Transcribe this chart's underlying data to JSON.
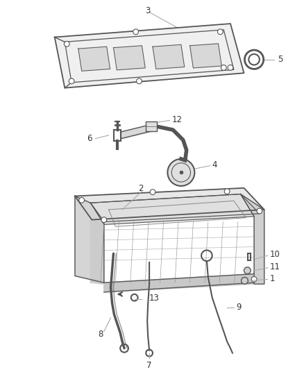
{
  "background_color": "#ffffff",
  "figure_width": 4.38,
  "figure_height": 5.33,
  "dpi": 100,
  "line_color": "#aaaaaa",
  "text_color": "#333333",
  "drawing_color": "#555555",
  "drawing_color_light": "#888888"
}
